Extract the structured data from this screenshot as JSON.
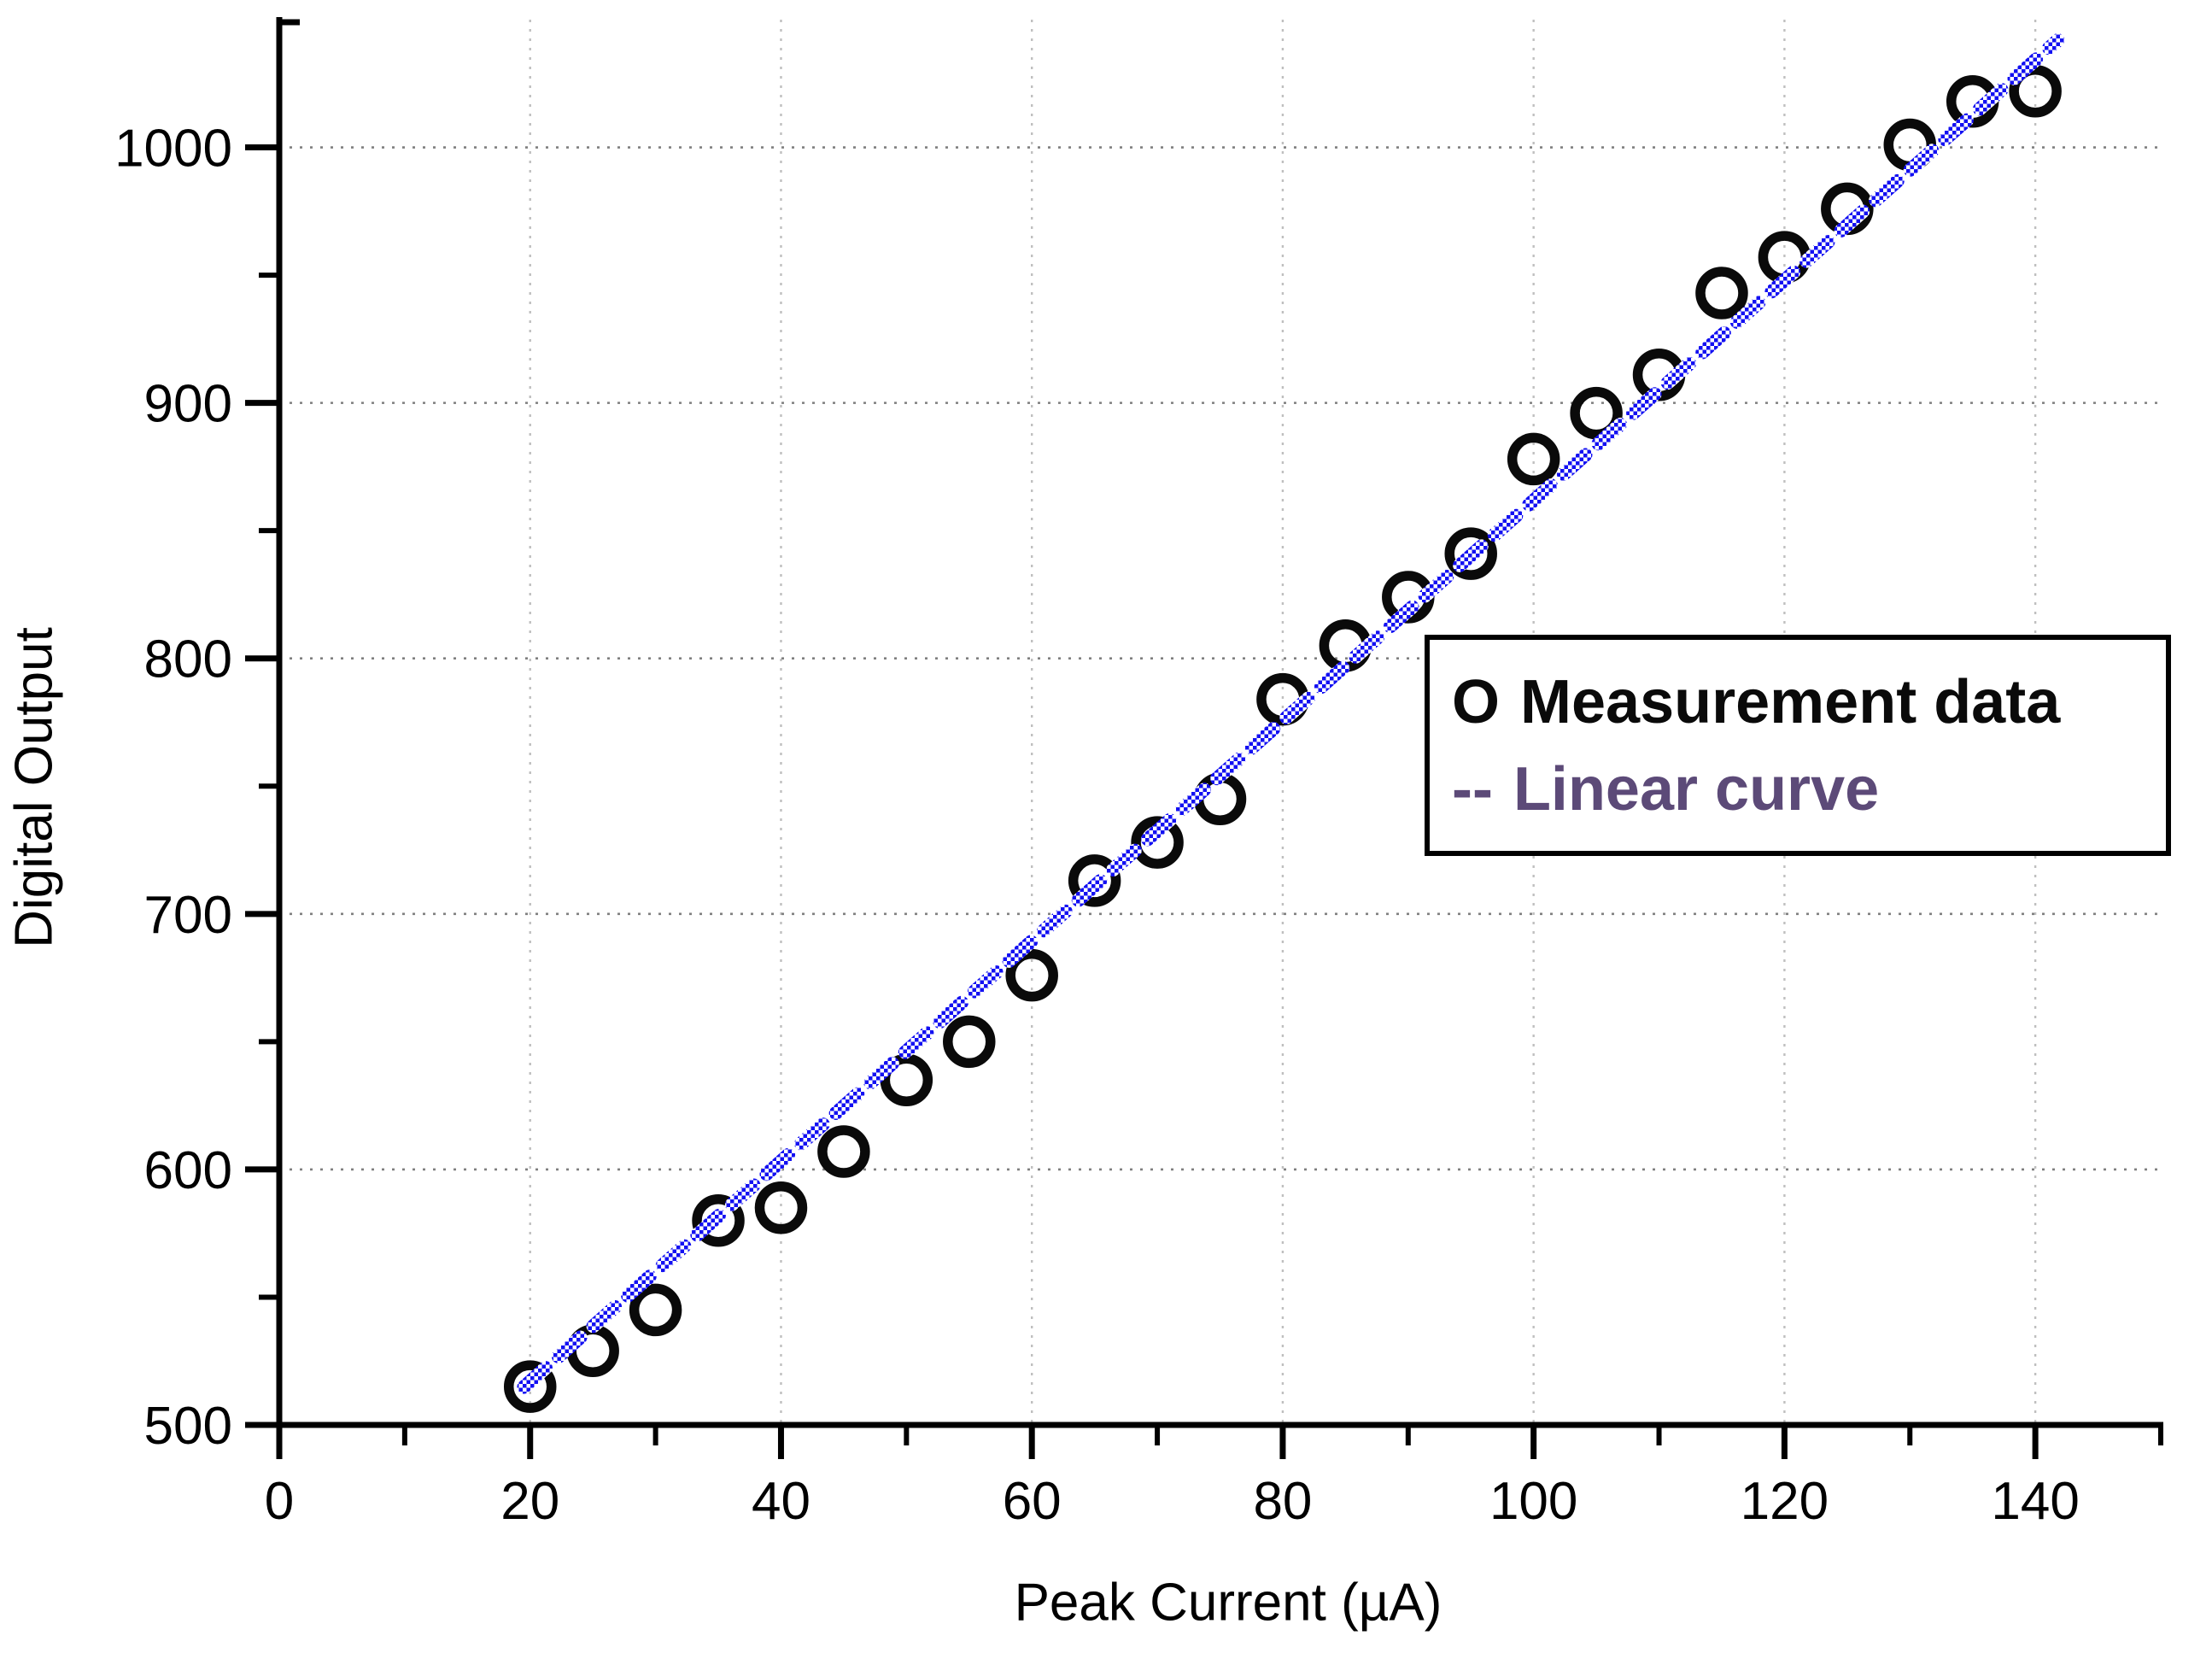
{
  "figure": {
    "xlabel": "Peak Current (µA)",
    "ylabel": "Digital Output",
    "legend": {
      "measurement_symbol": "O",
      "measurement_label": "Measurement data",
      "linear_symbol": "--",
      "linear_label": "Linear curve"
    },
    "colors": {
      "marker": "#0a0a0a",
      "fit_line_blue": "#1310f2",
      "legend_linear_purple": "#5c4a78",
      "grid_horizontal": "#7f7f7f",
      "grid_vertical": "#bfbfbf",
      "axis": "#000000",
      "tick_label": "#000000",
      "background": "#ffffff"
    }
  },
  "chart_data": {
    "type": "scatter",
    "title": "",
    "xlabel": "Peak Current (µA)",
    "ylabel": "Digital Output",
    "xlim": [
      0,
      150
    ],
    "ylim": [
      500,
      1050
    ],
    "x_ticks": [
      0,
      20,
      40,
      60,
      80,
      100,
      120,
      140
    ],
    "x_minor_ticks": [
      10,
      30,
      50,
      70,
      90,
      110,
      130,
      150
    ],
    "y_ticks": [
      500,
      600,
      700,
      800,
      900,
      1000
    ],
    "y_minor_ticks": [
      550,
      650,
      750,
      850,
      950
    ],
    "grid": "dotted lines on major ticks, horizontal darker than vertical",
    "legend_position": "inside, center-right",
    "series": [
      {
        "name": "Measurement data",
        "type": "scatter",
        "marker": "open-circle",
        "color": "#0a0a0a",
        "x": [
          20,
          25,
          30,
          35,
          40,
          45,
          50,
          55,
          60,
          65,
          70,
          75,
          80,
          85,
          90,
          95,
          100,
          105,
          110,
          115,
          120,
          125,
          130,
          135,
          140
        ],
        "y": [
          515,
          529,
          545,
          580,
          585,
          607,
          635,
          650,
          676,
          713,
          728,
          745,
          784,
          805,
          824,
          841,
          878,
          896,
          911,
          943,
          957,
          976,
          1001,
          1018,
          1022
        ]
      },
      {
        "name": "Linear curve",
        "type": "line",
        "style": "dashed-halftone",
        "color": "#1310f2",
        "fit": {
          "slope": 4.31,
          "intercept": 430.8,
          "x_start": 19.5,
          "x_end": 141.8
        }
      }
    ]
  }
}
